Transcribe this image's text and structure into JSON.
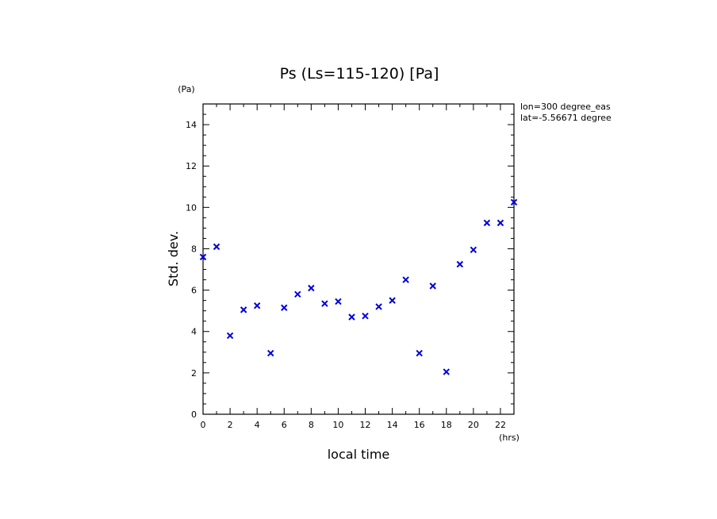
{
  "chart_data": {
    "type": "scatter",
    "title": "Ps (Ls=115-120) [Pa]",
    "xlabel": "local time",
    "ylabel": "Std. dev.",
    "x_unit": "(hrs)",
    "y_unit": "(Pa)",
    "annotations": [
      "lon=300 degree_eas",
      "lat=-5.56671 degree"
    ],
    "xlim": [
      0,
      23
    ],
    "ylim": [
      0,
      15
    ],
    "xticks": [
      0,
      2,
      4,
      6,
      8,
      10,
      12,
      14,
      16,
      18,
      20,
      22
    ],
    "yticks": [
      0,
      2,
      4,
      6,
      8,
      10,
      12,
      14
    ],
    "marker": "x",
    "marker_color": "#0000dd",
    "series": [
      {
        "name": "Std. dev.",
        "x": [
          0,
          1,
          2,
          3,
          4,
          5,
          6,
          7,
          8,
          9,
          10,
          11,
          12,
          13,
          14,
          15,
          16,
          17,
          18,
          19,
          20,
          21,
          22,
          23
        ],
        "y": [
          7.6,
          8.1,
          3.8,
          5.05,
          5.25,
          2.95,
          5.15,
          5.8,
          6.1,
          5.35,
          5.45,
          4.7,
          4.75,
          5.2,
          5.5,
          6.5,
          2.95,
          6.2,
          2.05,
          7.25,
          7.95,
          9.25,
          9.25,
          10.25
        ]
      }
    ]
  }
}
